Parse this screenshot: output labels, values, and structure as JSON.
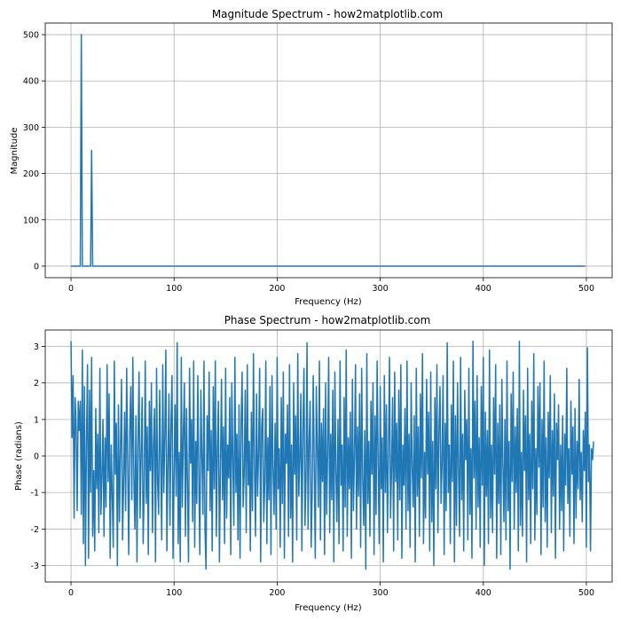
{
  "figure": {
    "background": "#ffffff"
  },
  "colors": {
    "series": "#1f77b4",
    "grid": "#b0b0b0",
    "axis": "#000000"
  },
  "chart_data": [
    {
      "type": "line",
      "title": "Magnitude Spectrum - how2matplotlib.com",
      "xlabel": "Frequency (Hz)",
      "ylabel": "Magnitude",
      "xlim": [
        -25,
        525
      ],
      "ylim": [
        -25,
        525
      ],
      "grid": true,
      "xticks": [
        0,
        100,
        200,
        300,
        400,
        500
      ],
      "yticks": [
        0,
        100,
        200,
        300,
        400,
        500
      ],
      "series": [
        {
          "x_start": 0,
          "x_end": 499,
          "x_step": 1,
          "baseline": 0,
          "peaks": [
            {
              "x": 10,
              "y": 500
            },
            {
              "x": 20,
              "y": 250
            }
          ]
        }
      ]
    },
    {
      "type": "line",
      "title": "Phase Spectrum - how2matplotlib.com",
      "xlabel": "Frequency (Hz)",
      "ylabel": "Phase (radians)",
      "xlim": [
        -25,
        525
      ],
      "ylim": [
        -3.45,
        3.45
      ],
      "grid": true,
      "xticks": [
        0,
        100,
        200,
        300,
        400,
        500
      ],
      "yticks": [
        -3,
        -2,
        -1,
        0,
        1,
        2,
        3
      ],
      "series": [
        {
          "x_start": 0,
          "x_step": 1,
          "values": [
            3.14,
            0.5,
            2.2,
            -1.7,
            1.6,
            0.8,
            -1.5,
            1.5,
            0.7,
            1.5,
            -1.6,
            2.9,
            -2.4,
            1.9,
            -3.0,
            0.4,
            2.5,
            -2.8,
            1.8,
            -1.0,
            2.7,
            -2.2,
            -0.4,
            -2.6,
            1.3,
            -0.9,
            0.6,
            -2.1,
            2.4,
            -1.6,
            -0.6,
            1.0,
            -2.2,
            0.5,
            -1.4,
            2.5,
            -0.7,
            1.7,
            -2.8,
            0.3,
            -1.1,
            -2.5,
            2.6,
            -0.5,
            0.9,
            -3.0,
            1.4,
            -1.8,
            0.2,
            2.1,
            -2.3,
            -0.8,
            1.2,
            -1.5,
            2.4,
            -0.2,
            -2.7,
            0.7,
            1.9,
            -1.2,
            2.7,
            -0.6,
            -2.0,
            1.1,
            -2.9,
            0.4,
            2.3,
            -1.7,
            0.0,
            1.6,
            -2.4,
            -0.9,
            2.6,
            -1.3,
            0.8,
            -2.7,
            1.5,
            -0.4,
            2.0,
            -2.1,
            0.3,
            1.3,
            -2.9,
            2.4,
            -0.7,
            -1.6,
            1.8,
            -0.1,
            -2.3,
            2.5,
            -1.0,
            0.5,
            2.9,
            -2.6,
            -0.3,
            1.7,
            -1.9,
            0.9,
            2.2,
            -2.8,
            -0.5,
            1.4,
            -1.1,
            3.1,
            -2.4,
            0.1,
            -2.9,
            2.7,
            -1.4,
            0.6,
            2.0,
            -2.2,
            1.3,
            -0.8,
            -2.9,
            2.4,
            -0.2,
            1.0,
            -1.8,
            2.6,
            -2.5,
            0.4,
            -1.3,
            2.2,
            -0.6,
            -2.7,
            1.8,
            0.0,
            -1.6,
            2.6,
            -2.0,
            -3.1,
            1.1,
            -0.4,
            2.3,
            -1.5,
            0.7,
            -2.6,
            1.9,
            -0.9,
            2.6,
            -2.2,
            0.2,
            1.5,
            -2.9,
            -0.3,
            2.1,
            -1.2,
            0.8,
            -2.4,
            2.4,
            -1.7,
            0.3,
            -0.6,
            1.6,
            -2.7,
            2.0,
            -0.1,
            -1.9,
            2.7,
            -1.0,
            0.6,
            -2.3,
            1.4,
            -2.8,
            0.9,
            2.3,
            -1.4,
            -0.5,
            1.8,
            -2.1,
            2.5,
            -0.8,
            0.4,
            -2.6,
            1.2,
            -1.5,
            2.8,
            -0.3,
            -2.2,
            1.7,
            -1.1,
            0.1,
            2.4,
            -2.9,
            0.8,
            1.3,
            -1.8,
            -0.7,
            2.6,
            -2.4,
            0.5,
            -1.2,
            1.9,
            -2.7,
            2.2,
            -0.4,
            -1.6,
            0.9,
            -2.0,
            2.7,
            -0.9,
            0.2,
            -2.5,
            1.6,
            -1.3,
            2.3,
            -2.8,
            0.6,
            -0.2,
            1.4,
            -2.2,
            2.5,
            -1.7,
            0.3,
            -2.9,
            2.0,
            -0.5,
            1.1,
            -2.3,
            2.8,
            -1.1,
            -0.1,
            1.7,
            -2.6,
            0.7,
            2.4,
            -1.9,
            -0.6,
            3.1,
            -2.0,
            0.4,
            1.5,
            -2.5,
            -1.0,
            2.2,
            -0.3,
            -2.8,
            1.9,
            0.2,
            -1.4,
            2.6,
            -2.3,
            0.9,
            -0.7,
            1.3,
            -2.7,
            2.0,
            -1.6,
            0.1,
            2.7,
            -2.1,
            0.6,
            -1.2,
            1.8,
            -2.9,
            2.3,
            -0.4,
            -1.8,
            1.0,
            -2.4,
            2.6,
            -0.8,
            0.3,
            -2.6,
            1.6,
            -1.4,
            2.9,
            -2.2,
            0.5,
            -0.9,
            1.2,
            -2.8,
            2.1,
            -1.5,
            0.0,
            2.5,
            -2.0,
            0.8,
            -1.1,
            1.7,
            -2.5,
            2.4,
            -0.6,
            -1.9,
            0.7,
            -3.1,
            2.8,
            -1.3,
            0.4,
            -2.2,
            1.5,
            -0.5,
            2.0,
            -2.7,
            1.1,
            -1.6,
            2.6,
            -0.2,
            -2.4,
            1.9,
            -0.9,
            0.5,
            -2.9,
            2.2,
            -1.0,
            1.4,
            -2.1,
            0.2,
            2.7,
            -1.7,
            -0.4,
            1.6,
            -2.6,
            2.3,
            -0.7,
            0.9,
            -2.3,
            1.8,
            -1.2,
            2.5,
            -2.8,
            0.3,
            -0.8,
            1.3,
            -2.0,
            2.6,
            -1.5,
            0.6,
            -2.5,
            2.0,
            -0.3,
            -1.4,
            1.1,
            -2.9,
            2.4,
            -1.1,
            0.8,
            -2.2,
            1.7,
            -0.6,
            2.8,
            -2.4,
            0.1,
            -1.7,
            2.1,
            -0.5,
            1.2,
            -2.6,
            2.3,
            -1.8,
            0.4,
            -3.0,
            1.6,
            -0.9,
            2.5,
            -2.1,
            0.7,
            1.9,
            -1.3,
            -0.2,
            2.2,
            -2.7,
            0.9,
            -1.5,
            3.1,
            -1.0,
            0.3,
            -2.4,
            1.4,
            -0.7,
            2.6,
            -2.9,
            1.1,
            -1.9,
            2.0,
            -0.4,
            -2.2,
            2.7,
            -1.2,
            0.6,
            -2.6,
            1.8,
            -0.1,
            1.0,
            -2.3,
            2.4,
            -1.6,
            0.2,
            -2.8,
            3.14,
            -0.6,
            1.5,
            -2.0,
            2.2,
            -1.4,
            0.5,
            -2.5,
            1.9,
            -0.8,
            2.7,
            -3.0,
            1.2,
            -1.1,
            0.7,
            -2.4,
            2.9,
            -1.7,
            0.3,
            -2.1,
            1.6,
            -0.5,
            2.5,
            -2.8,
            0.9,
            -1.3,
            1.4,
            -2.7,
            2.1,
            -0.2,
            -1.8,
            1.0,
            -2.3,
            2.6,
            -1.5,
            0.4,
            -3.1,
            1.7,
            -0.7,
            2.3,
            -2.0,
            0.8,
            -1.0,
            1.3,
            -2.6,
            3.14,
            -1.9,
            0.1,
            -2.2,
            1.8,
            -0.4,
            1.1,
            -2.9,
            2.4,
            -1.2,
            0.6,
            -2.4,
            1.5,
            -0.9,
            2.8,
            -2.3,
            0.2,
            -1.6,
            1.9,
            -0.3,
            2.0,
            -2.7,
            1.0,
            -1.4,
            2.6,
            -1.8,
            0.5,
            -2.5,
            1.2,
            -0.6,
            2.2,
            -2.1,
            0.7,
            -1.1,
            1.7,
            -2.8,
            0.9,
            -0.1,
            1.4,
            -2.0,
            0.3,
            -1.5,
            1.1,
            -2.6,
            0.6,
            -0.8,
            2.4,
            -1.3,
            0.2,
            -2.2,
            1.5,
            -0.5,
            0.8,
            -2.4,
            1.3,
            -1.7,
            0.4,
            -0.9,
            2.1,
            -1.2,
            0.1,
            -1.8,
            0.7,
            -0.4,
            1.2,
            -2.5,
            2.96,
            -0.7,
            0.3,
            -2.6,
            0.2,
            -0.1,
            0.4
          ]
        }
      ]
    }
  ]
}
